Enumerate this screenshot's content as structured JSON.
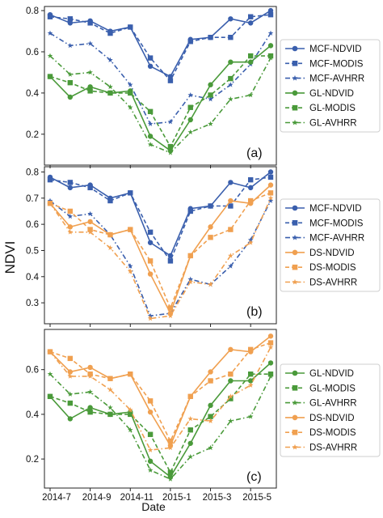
{
  "figure": {
    "ylabel": "NDVI",
    "xlabel": "Date",
    "x_tick_labels": [
      "2014-7",
      "2014-9",
      "2014-11",
      "2015-1",
      "2015-3",
      "2015-5"
    ]
  },
  "colors": {
    "MCF": "#3a5fad",
    "GL": "#4a9a3a",
    "DS": "#f0a050"
  },
  "series_data": {
    "MCF-NDVID": [
      0.78,
      0.74,
      0.75,
      0.7,
      0.72,
      0.53,
      0.48,
      0.66,
      0.67,
      0.76,
      0.74,
      0.8
    ],
    "MCF-MODIS": [
      0.77,
      0.76,
      0.74,
      0.69,
      0.72,
      0.57,
      0.46,
      0.65,
      0.67,
      0.67,
      0.77,
      0.78
    ],
    "MCF-AVHRR": [
      0.69,
      0.63,
      0.64,
      0.56,
      0.44,
      0.25,
      0.26,
      0.39,
      0.37,
      0.44,
      0.54,
      0.69
    ],
    "GL-NDVID": [
      0.48,
      0.38,
      0.43,
      0.4,
      0.41,
      0.19,
      0.12,
      0.27,
      0.44,
      0.55,
      0.55,
      0.63
    ],
    "GL-MODIS": [
      0.48,
      0.45,
      0.41,
      0.4,
      0.4,
      0.31,
      0.14,
      0.33,
      0.39,
      0.47,
      0.58,
      0.58
    ],
    "GL-AVHRR": [
      0.58,
      0.49,
      0.5,
      0.43,
      0.33,
      0.15,
      0.11,
      0.21,
      0.25,
      0.37,
      0.39,
      0.57
    ],
    "DS-NDVID": [
      0.68,
      0.59,
      0.61,
      0.56,
      0.58,
      0.41,
      0.26,
      0.48,
      0.59,
      0.69,
      0.68,
      0.75
    ],
    "DS-MODIS": [
      0.68,
      0.65,
      0.58,
      0.56,
      0.58,
      0.46,
      0.28,
      0.48,
      0.55,
      0.58,
      0.69,
      0.72
    ],
    "DS-AVHRR": [
      0.68,
      0.57,
      0.57,
      0.51,
      0.42,
      0.24,
      0.25,
      0.38,
      0.37,
      0.48,
      0.53,
      0.7
    ]
  },
  "chart_data": [
    {
      "type": "line",
      "panel_label": "(a)",
      "x": [
        "2014-7",
        "2014-8",
        "2014-9",
        "2014-10",
        "2014-11",
        "2014-12",
        "2015-1",
        "2015-2",
        "2015-3",
        "2015-4",
        "2015-5",
        "2015-6"
      ],
      "ylim": [
        0.05,
        0.82
      ],
      "y_ticks": [
        0.2,
        0.4,
        0.6,
        0.8
      ],
      "legend_position": "right",
      "series": [
        {
          "name": "MCF-NDVID",
          "ref": "MCF-NDVID",
          "group": "MCF",
          "marker": "circle",
          "dash": "solid"
        },
        {
          "name": "MCF-MODIS",
          "ref": "MCF-MODIS",
          "group": "MCF",
          "marker": "square",
          "dash": "dashed"
        },
        {
          "name": "MCF-AVHRR",
          "ref": "MCF-AVHRR",
          "group": "MCF",
          "marker": "star",
          "dash": "dashdot"
        },
        {
          "name": "GL-NDVID",
          "ref": "GL-NDVID",
          "group": "GL",
          "marker": "circle",
          "dash": "solid"
        },
        {
          "name": "GL-MODIS",
          "ref": "GL-MODIS",
          "group": "GL",
          "marker": "square",
          "dash": "dashed"
        },
        {
          "name": "GL-AVHRR",
          "ref": "GL-AVHRR",
          "group": "GL",
          "marker": "star",
          "dash": "dashdot"
        }
      ]
    },
    {
      "type": "line",
      "panel_label": "(b)",
      "x": [
        "2014-7",
        "2014-8",
        "2014-9",
        "2014-10",
        "2014-11",
        "2014-12",
        "2015-1",
        "2015-2",
        "2015-3",
        "2015-4",
        "2015-5",
        "2015-6"
      ],
      "ylim": [
        0.22,
        0.82
      ],
      "y_ticks": [
        0.3,
        0.4,
        0.5,
        0.6,
        0.7,
        0.8
      ],
      "legend_position": "right",
      "series": [
        {
          "name": "MCF-NDVID",
          "ref": "MCF-NDVID",
          "group": "MCF",
          "marker": "circle",
          "dash": "solid"
        },
        {
          "name": "MCF-MODIS",
          "ref": "MCF-MODIS",
          "group": "MCF",
          "marker": "square",
          "dash": "dashed"
        },
        {
          "name": "MCF-AVHRR",
          "ref": "MCF-AVHRR",
          "group": "MCF",
          "marker": "star",
          "dash": "dashdot"
        },
        {
          "name": "DS-NDVID",
          "ref": "DS-NDVID",
          "group": "DS",
          "marker": "circle",
          "dash": "solid"
        },
        {
          "name": "DS-MODIS",
          "ref": "DS-MODIS",
          "group": "DS",
          "marker": "square",
          "dash": "dashed"
        },
        {
          "name": "DS-AVHRR",
          "ref": "DS-AVHRR",
          "group": "DS",
          "marker": "star",
          "dash": "dashdot"
        }
      ]
    },
    {
      "type": "line",
      "panel_label": "(c)",
      "x": [
        "2014-7",
        "2014-8",
        "2014-9",
        "2014-10",
        "2014-11",
        "2014-12",
        "2015-1",
        "2015-2",
        "2015-3",
        "2015-4",
        "2015-5",
        "2015-6"
      ],
      "ylim": [
        0.07,
        0.78
      ],
      "y_ticks": [
        0.2,
        0.4,
        0.6
      ],
      "legend_position": "right",
      "series": [
        {
          "name": "GL-NDVID",
          "ref": "GL-NDVID",
          "group": "GL",
          "marker": "circle",
          "dash": "solid"
        },
        {
          "name": "GL-MODIS",
          "ref": "GL-MODIS",
          "group": "GL",
          "marker": "square",
          "dash": "dashed"
        },
        {
          "name": "GL-AVHRR",
          "ref": "GL-AVHRR",
          "group": "GL",
          "marker": "star",
          "dash": "dashdot"
        },
        {
          "name": "DS-NDVID",
          "ref": "DS-NDVID",
          "group": "DS",
          "marker": "circle",
          "dash": "solid"
        },
        {
          "name": "DS-MODIS",
          "ref": "DS-MODIS",
          "group": "DS",
          "marker": "square",
          "dash": "dashed"
        },
        {
          "name": "DS-AVHRR",
          "ref": "DS-AVHRR",
          "group": "DS",
          "marker": "star",
          "dash": "dashdot"
        }
      ]
    }
  ]
}
